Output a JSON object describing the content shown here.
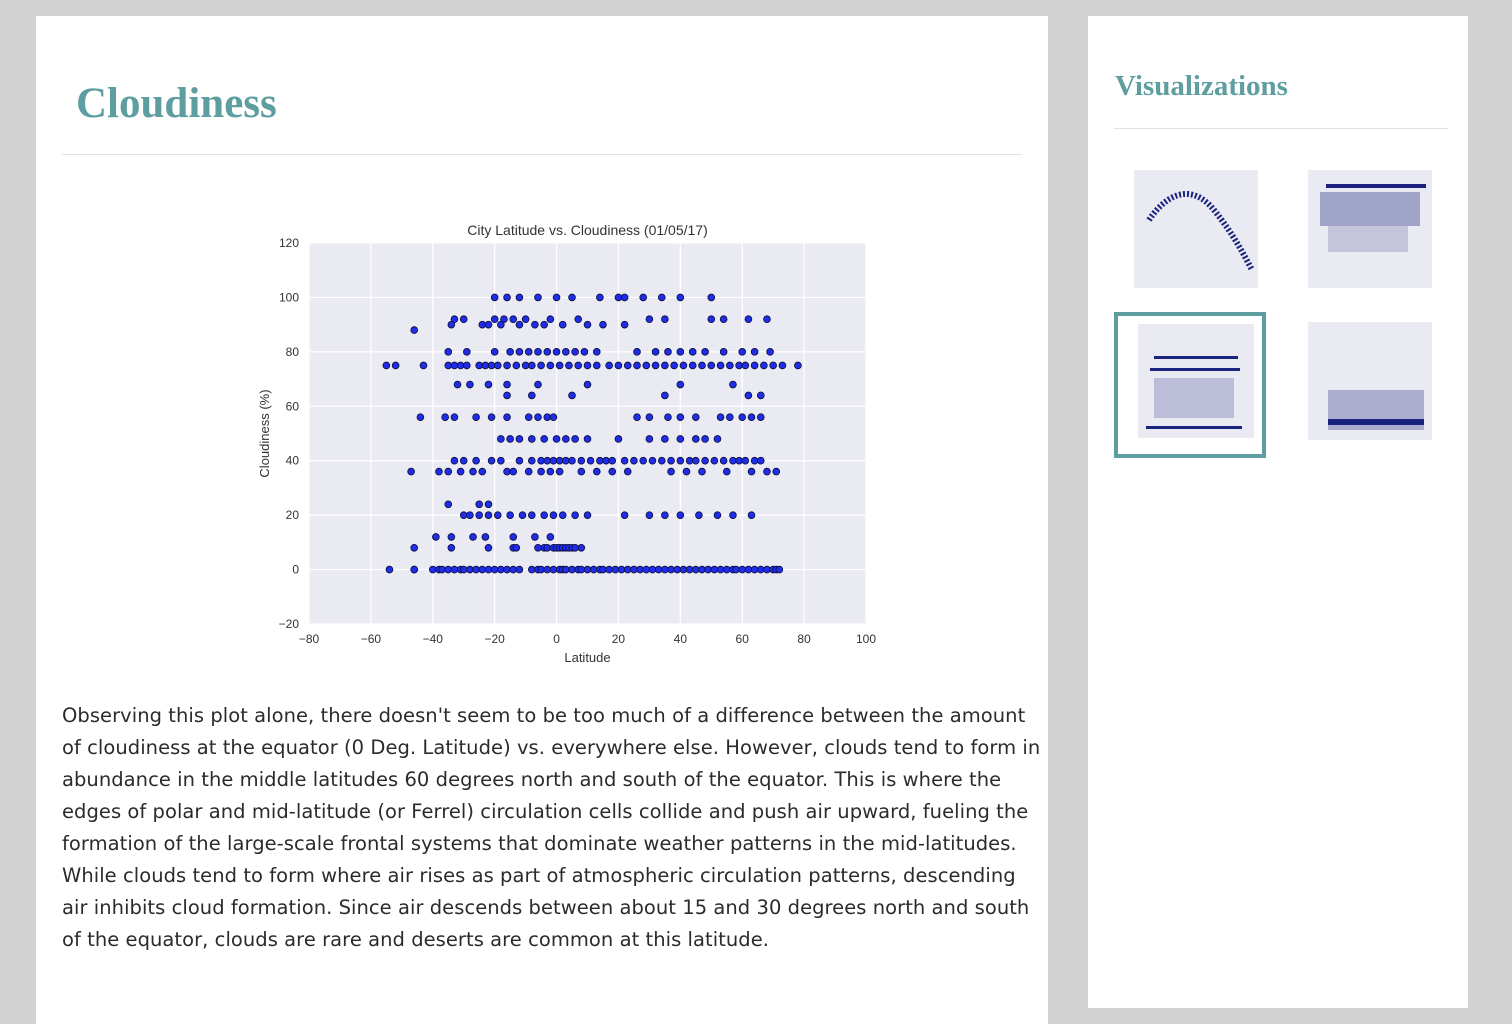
{
  "main": {
    "title": "Cloudiness",
    "description": "Observing this plot alone, there doesn't seem to be too much of a difference between the amount of cloudiness at the equator (0 Deg. Latitude) vs. everywhere else. However, clouds tend to form in abundance in the middle latitudes 60 degrees north and south of the equator. This is where the edges of polar and mid-latitude (or Ferrel) circulation cells collide and push air upward, fueling the formation of the large-scale frontal systems that dominate weather patterns in the mid-latitudes. While clouds tend to form where air rises as part of atmospheric circulation patterns, descending air inhibits cloud formation. Since air descends between about 15 and 30 degrees north and south of the equator, clouds are rare and deserts are common at this latitude."
  },
  "sidebar": {
    "title": "Visualizations",
    "thumbnails": [
      {
        "id": "temperature",
        "active": false
      },
      {
        "id": "humidity",
        "active": false
      },
      {
        "id": "cloudiness",
        "active": true
      },
      {
        "id": "wind-speed",
        "active": false
      }
    ]
  },
  "colors": {
    "accent": "#5f9ea0",
    "plot_bg": "#eaeaf2",
    "point_fill": "#1f2ee6",
    "point_edge": "#0a0a3a"
  },
  "chart_data": {
    "type": "scatter",
    "title": "City Latitude vs. Cloudiness (01/05/17)",
    "xlabel": "Latitude",
    "ylabel": "Cloudiness (%)",
    "xlim": [
      -80,
      100
    ],
    "ylim": [
      -20,
      120
    ],
    "xticks": [
      -80,
      -60,
      -40,
      -20,
      0,
      20,
      40,
      60,
      80,
      100
    ],
    "yticks": [
      -20,
      0,
      20,
      40,
      60,
      80,
      100,
      120
    ],
    "grid": true,
    "x": [
      -54,
      -46,
      -46,
      -40,
      -38,
      -37,
      -35,
      -33,
      -31,
      -30,
      -28,
      -26,
      -24,
      -22,
      -20,
      -18,
      -16,
      -14,
      -12,
      -8,
      -6,
      -5,
      -3,
      -1,
      1,
      2,
      3,
      5,
      7,
      8,
      10,
      12,
      14,
      15,
      17,
      19,
      21,
      23,
      25,
      27,
      29,
      31,
      33,
      35,
      37,
      39,
      41,
      43,
      45,
      47,
      49,
      51,
      53,
      55,
      57,
      58,
      60,
      62,
      64,
      66,
      68,
      70,
      71,
      72,
      -55,
      -52,
      -43,
      -35,
      -33,
      -31,
      -29,
      -25,
      -23,
      -21,
      -19,
      -16,
      -13,
      -10,
      -8,
      -5,
      -2,
      1,
      4,
      7,
      10,
      13,
      17,
      20,
      23,
      26,
      29,
      32,
      35,
      38,
      41,
      44,
      47,
      50,
      53,
      56,
      59,
      61,
      64,
      67,
      70,
      73,
      78,
      -33,
      -30,
      -20,
      -17,
      -14,
      -10,
      -2,
      7,
      30,
      35,
      50,
      54,
      62,
      68,
      -34,
      -24,
      -22,
      -18,
      -12,
      -7,
      -4,
      2,
      10,
      15,
      22,
      -33,
      -30,
      -26,
      -21,
      -18,
      -12,
      -8,
      -5,
      -3,
      -1,
      1,
      3,
      5,
      8,
      11,
      14,
      16,
      18,
      22,
      25,
      28,
      31,
      34,
      37,
      40,
      43,
      45,
      48,
      51,
      54,
      57,
      59,
      61,
      64,
      66,
      -30,
      -28,
      -25,
      -22,
      -19,
      -15,
      -11,
      -8,
      -4,
      -1,
      2,
      6,
      10,
      22,
      30,
      35,
      40,
      46,
      52,
      57,
      63,
      -35,
      -29,
      -20,
      -15,
      -12,
      -9,
      -6,
      -3,
      0,
      3,
      6,
      9,
      13,
      26,
      32,
      36,
      40,
      44,
      48,
      54,
      60,
      64,
      69,
      -44,
      -36,
      -33,
      -26,
      -21,
      -16,
      -9,
      -6,
      -3,
      -1,
      26,
      30,
      36,
      40,
      45,
      53,
      56,
      60,
      63,
      66,
      -47,
      -38,
      -35,
      -31,
      -27,
      -24,
      -16,
      -14,
      -9,
      -5,
      -2,
      1,
      8,
      13,
      18,
      23,
      37,
      42,
      47,
      55,
      63,
      68,
      71,
      -39,
      -34,
      -27,
      -23,
      -14,
      -7,
      -2,
      -14,
      -4,
      8,
      -46,
      -34,
      -22,
      -13,
      -6,
      -3,
      -1,
      0,
      1,
      2,
      3,
      4,
      5,
      6,
      -32,
      -28,
      -22,
      -16,
      -6,
      10,
      40,
      57,
      -18,
      -15,
      -12,
      -8,
      -4,
      0,
      3,
      6,
      10,
      20,
      30,
      35,
      40,
      45,
      48,
      52,
      -20,
      -16,
      -12,
      -6,
      0,
      5,
      14,
      20,
      22,
      28,
      34,
      40,
      50,
      -46,
      62,
      66,
      -16,
      -8,
      5,
      35,
      -35,
      -25,
      -22
    ],
    "y": [
      0,
      0,
      0,
      0,
      0,
      0,
      0,
      0,
      0,
      0,
      0,
      0,
      0,
      0,
      0,
      0,
      0,
      0,
      0,
      0,
      0,
      0,
      0,
      0,
      0,
      0,
      0,
      0,
      0,
      0,
      0,
      0,
      0,
      0,
      0,
      0,
      0,
      0,
      0,
      0,
      0,
      0,
      0,
      0,
      0,
      0,
      0,
      0,
      0,
      0,
      0,
      0,
      0,
      0,
      0,
      0,
      0,
      0,
      0,
      0,
      0,
      0,
      0,
      0,
      75,
      75,
      75,
      75,
      75,
      75,
      75,
      75,
      75,
      75,
      75,
      75,
      75,
      75,
      75,
      75,
      75,
      75,
      75,
      75,
      75,
      75,
      75,
      75,
      75,
      75,
      75,
      75,
      75,
      75,
      75,
      75,
      75,
      75,
      75,
      75,
      75,
      75,
      75,
      75,
      75,
      75,
      75,
      92,
      92,
      92,
      92,
      92,
      92,
      92,
      92,
      92,
      92,
      92,
      92,
      92,
      92,
      90,
      90,
      90,
      90,
      90,
      90,
      90,
      90,
      90,
      90,
      90,
      40,
      40,
      40,
      40,
      40,
      40,
      40,
      40,
      40,
      40,
      40,
      40,
      40,
      40,
      40,
      40,
      40,
      40,
      40,
      40,
      40,
      40,
      40,
      40,
      40,
      40,
      40,
      40,
      40,
      40,
      40,
      40,
      40,
      40,
      40,
      20,
      20,
      20,
      20,
      20,
      20,
      20,
      20,
      20,
      20,
      20,
      20,
      20,
      20,
      20,
      20,
      20,
      20,
      20,
      20,
      20,
      80,
      80,
      80,
      80,
      80,
      80,
      80,
      80,
      80,
      80,
      80,
      80,
      80,
      80,
      80,
      80,
      80,
      80,
      80,
      80,
      80,
      80,
      80,
      56,
      56,
      56,
      56,
      56,
      56,
      56,
      56,
      56,
      56,
      56,
      56,
      56,
      56,
      56,
      56,
      56,
      56,
      56,
      56,
      36,
      36,
      36,
      36,
      36,
      36,
      36,
      36,
      36,
      36,
      36,
      36,
      36,
      36,
      36,
      36,
      36,
      36,
      36,
      36,
      36,
      36,
      36,
      12,
      12,
      12,
      12,
      12,
      12,
      12,
      8,
      8,
      8,
      8,
      8,
      8,
      8,
      8,
      8,
      8,
      8,
      8,
      8,
      8,
      8,
      8,
      8,
      68,
      68,
      68,
      68,
      68,
      68,
      68,
      68,
      48,
      48,
      48,
      48,
      48,
      48,
      48,
      48,
      48,
      48,
      48,
      48,
      48,
      48,
      48,
      48,
      100,
      100,
      100,
      100,
      100,
      100,
      100,
      100,
      100,
      100,
      100,
      100,
      100,
      88,
      64,
      64,
      64,
      64,
      64,
      64,
      24,
      24,
      24
    ],
    "point_style": {
      "fill": "#1f2ee6",
      "edge": "#0a0a3a"
    }
  }
}
